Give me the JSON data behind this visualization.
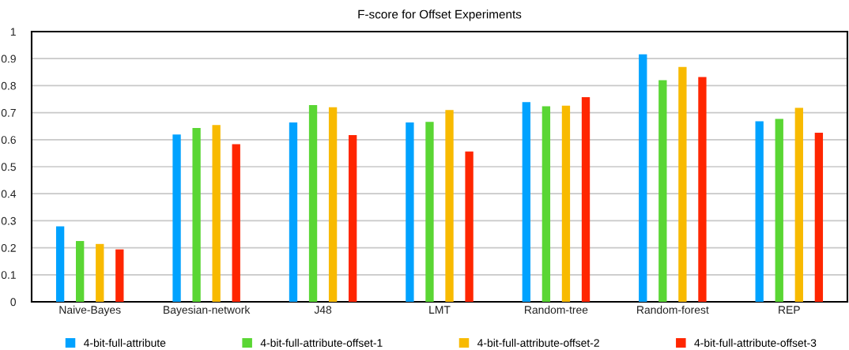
{
  "chart_data": {
    "type": "bar",
    "title": "F-score for Offset Experiments",
    "categories": [
      "Naive-Bayes",
      "Bayesian-network",
      "J48",
      "LMT",
      "Random-tree",
      "Random-forest",
      "REP"
    ],
    "series": [
      {
        "name": "4-bit-full-attribute",
        "color": "#00a2ff",
        "values": [
          0.279,
          0.619,
          0.664,
          0.664,
          0.739,
          0.916,
          0.668
        ]
      },
      {
        "name": "4-bit-full-attribute-offset-1",
        "color": "#5ad634",
        "values": [
          0.225,
          0.643,
          0.728,
          0.666,
          0.724,
          0.82,
          0.677
        ]
      },
      {
        "name": "4-bit-full-attribute-offset-2",
        "color": "#f8ba00",
        "values": [
          0.214,
          0.654,
          0.72,
          0.71,
          0.726,
          0.869,
          0.718
        ]
      },
      {
        "name": "4-bit-full-attribute-offset-3",
        "color": "#ff2600",
        "values": [
          0.194,
          0.583,
          0.617,
          0.556,
          0.757,
          0.832,
          0.626
        ]
      }
    ],
    "ylim": [
      0,
      1
    ],
    "yticks": [
      0,
      0.1,
      0.2,
      0.3,
      0.4,
      0.5,
      0.6,
      0.7,
      0.8,
      0.9,
      1
    ],
    "grid": "y",
    "legend": "bottom"
  }
}
